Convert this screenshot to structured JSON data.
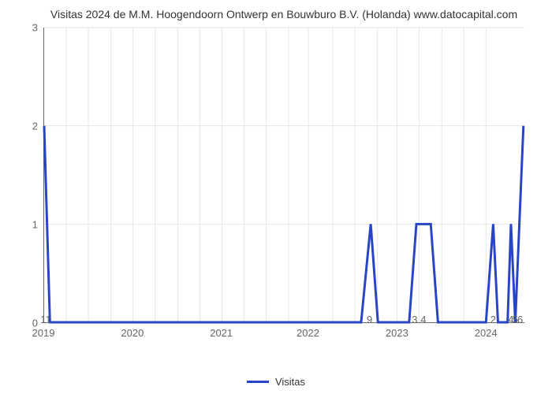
{
  "chart": {
    "type": "line",
    "title": "Visitas 2024 de M.M. Hoogendoorn Ontwerp en Bouwburo B.V. (Holanda) www.datocapital.com",
    "title_fontsize": 14,
    "title_color": "#333333",
    "background_color": "#ffffff",
    "grid_color": "#e6e6e6",
    "axis_color": "#666666",
    "label_color": "#666666",
    "label_fontsize": 13,
    "y_axis": {
      "min": 0,
      "max": 3,
      "ticks": [
        0,
        1,
        2,
        3
      ]
    },
    "x_axis": {
      "years": [
        {
          "label": "2019",
          "pos": 0.0
        },
        {
          "label": "2020",
          "pos": 0.185
        },
        {
          "label": "2021",
          "pos": 0.37
        },
        {
          "label": "2022",
          "pos": 0.55
        },
        {
          "label": "2023",
          "pos": 0.735
        },
        {
          "label": "2024",
          "pos": 0.92
        }
      ],
      "minor_grid_positions": [
        0.0,
        0.046,
        0.092,
        0.139,
        0.185,
        0.231,
        0.278,
        0.324,
        0.37,
        0.416,
        0.462,
        0.509,
        0.55,
        0.601,
        0.647,
        0.694,
        0.735,
        0.781,
        0.828,
        0.874,
        0.92
      ],
      "value_labels": [
        {
          "text": "11",
          "pos": 0.005
        },
        {
          "text": "9",
          "pos": 0.678
        },
        {
          "text": "3",
          "pos": 0.772
        },
        {
          "text": "4",
          "pos": 0.79
        },
        {
          "text": "2",
          "pos": 0.935
        },
        {
          "text": "4",
          "pos": 0.972
        },
        {
          "text": "5",
          "pos": 0.981
        },
        {
          "text": "6",
          "pos": 0.991
        }
      ]
    },
    "series": {
      "name": "Visitas",
      "color": "#2845c7",
      "line_width": 3,
      "points": [
        {
          "x": 0.0,
          "y": 2.0
        },
        {
          "x": 0.012,
          "y": 0.0
        },
        {
          "x": 0.66,
          "y": 0.0
        },
        {
          "x": 0.68,
          "y": 1.0
        },
        {
          "x": 0.695,
          "y": 0.0
        },
        {
          "x": 0.76,
          "y": 0.0
        },
        {
          "x": 0.775,
          "y": 1.0
        },
        {
          "x": 0.805,
          "y": 1.0
        },
        {
          "x": 0.82,
          "y": 0.0
        },
        {
          "x": 0.92,
          "y": 0.0
        },
        {
          "x": 0.935,
          "y": 1.0
        },
        {
          "x": 0.945,
          "y": 0.0
        },
        {
          "x": 0.965,
          "y": 0.0
        },
        {
          "x": 0.972,
          "y": 1.0
        },
        {
          "x": 0.981,
          "y": 0.0
        },
        {
          "x": 0.998,
          "y": 2.0
        }
      ]
    },
    "legend": {
      "label": "Visitas",
      "swatch_color": "#2845c7"
    }
  }
}
